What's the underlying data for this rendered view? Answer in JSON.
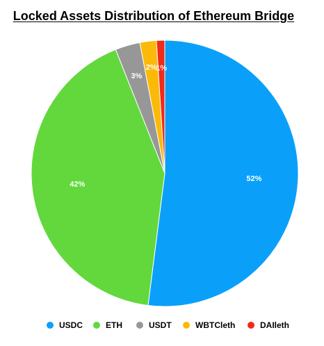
{
  "chart_data": {
    "type": "pie",
    "title": "Locked Assets Distribution of Ethereum Bridge",
    "slices": [
      {
        "label": "USDC",
        "value": 52,
        "display": "52%",
        "color": "#0aa0fa"
      },
      {
        "label": "ETH",
        "value": 42,
        "display": "42%",
        "color": "#62d83c"
      },
      {
        "label": "USDT",
        "value": 3,
        "display": "3%",
        "color": "#979797"
      },
      {
        "label": "WBTCleth",
        "value": 2,
        "display": "2%",
        "color": "#fbb90a"
      },
      {
        "label": "DAIleth",
        "value": 1,
        "display": "1%",
        "color": "#f22a18"
      }
    ],
    "legend_position": "bottom"
  }
}
